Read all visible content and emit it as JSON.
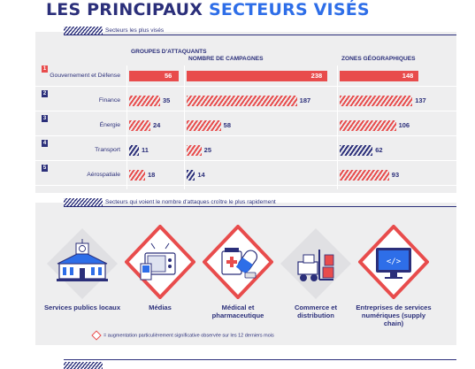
{
  "title": {
    "part1": "LES PRINCIPAUX",
    "part2": "SECTEURS VISÉS"
  },
  "section1": {
    "heading": "Secteurs les plus visés"
  },
  "section2": {
    "heading": "Secteurs qui voient le nombre d'attaques croître le plus rapidement"
  },
  "legend": {
    "text": "= augmentation particulièrement significative observée sur les 12 derniers mois"
  },
  "colors": {
    "red": "#e84c4c",
    "navy": "#2b2f7a",
    "blue": "#2e6ee8",
    "panel": "#eeeeef"
  },
  "chart_data": {
    "type": "bar",
    "title": "LES PRINCIPAUX SECTEURS VISÉS",
    "categories": [
      "Gouvernement et Défense",
      "Finance",
      "Énergie",
      "Transport",
      "Aérospatiale"
    ],
    "ranks": [
      "1",
      "2",
      "3",
      "4",
      "5"
    ],
    "series": [
      {
        "name": "GROUPES D'ATTAQUANTS",
        "values": [
          56,
          35,
          24,
          11,
          18
        ]
      },
      {
        "name": "NOMBRE DE CAMPAGNES",
        "values": [
          238,
          187,
          58,
          25,
          14
        ]
      },
      {
        "name": "ZONES GÉOGRAPHIQUES",
        "values": [
          148,
          137,
          106,
          62,
          93
        ]
      }
    ],
    "highlight": [
      [
        "solid",
        "red",
        "red",
        "blue",
        "red"
      ],
      [
        "solid",
        "red",
        "red",
        "red",
        "blue"
      ],
      [
        "solid",
        "red",
        "red",
        "blue",
        "red"
      ]
    ]
  },
  "sectors": [
    {
      "label": "Services publics locaux",
      "icon": "government-building-icon",
      "highlight": false
    },
    {
      "label": "Médias",
      "icon": "media-devices-icon",
      "highlight": true
    },
    {
      "label": "Médical et pharmaceutique",
      "icon": "medical-kit-icon",
      "highlight": true
    },
    {
      "label": "Commerce et distribution",
      "icon": "forklift-icon",
      "highlight": false
    },
    {
      "label": "Entreprises de services numériques (supply chain)",
      "icon": "code-monitor-icon",
      "highlight": true
    }
  ]
}
